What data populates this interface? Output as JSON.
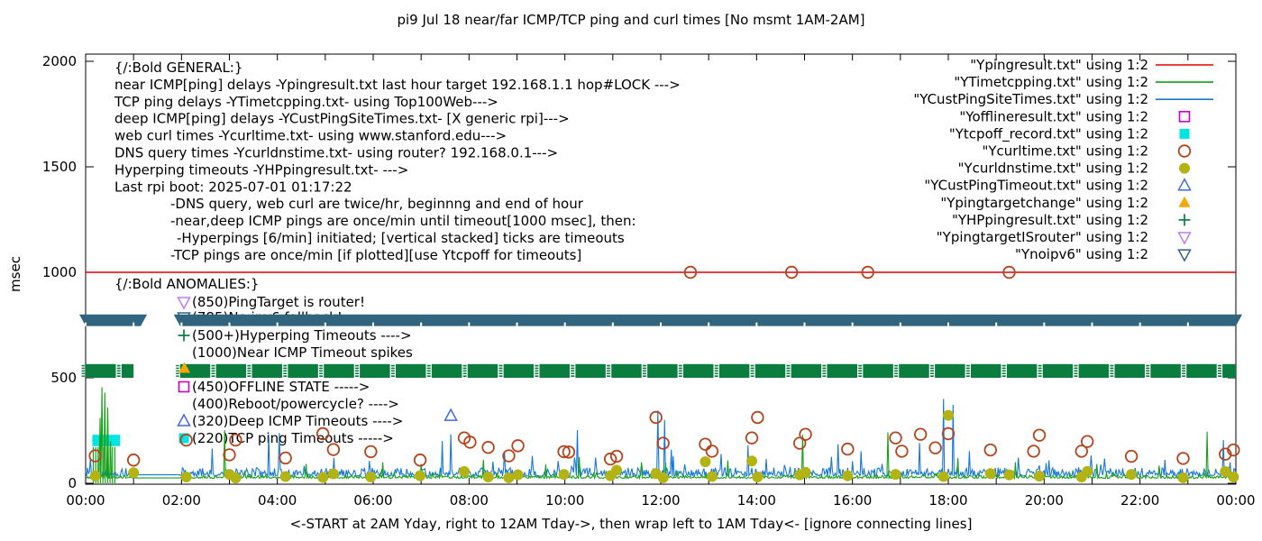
{
  "title": "pi9 Jul 18  near/far ICMP/TCP ping and curl times [No msmt 1AM-2AM]",
  "axes": {
    "ylabel": "msec",
    "xlabel": "<-START at 2AM Yday, right to 12AM Tday->, then wrap left to 1AM Tday<- [ignore connecting lines]",
    "y_ticks": [
      0,
      500,
      1000,
      1500,
      2000
    ],
    "x_ticks": [
      "00:00",
      "02:00",
      "04:00",
      "06:00",
      "08:00",
      "10:00",
      "12:00",
      "14:00",
      "16:00",
      "18:00",
      "20:00",
      "22:00",
      "00:00"
    ]
  },
  "legend": [
    {
      "label": "\"Ypingresult.txt\" using 1:2",
      "marker": "line",
      "color": "#e60000"
    },
    {
      "label": "\"YTimetcpping.txt\" using 1:2",
      "marker": "line",
      "color": "#16a016"
    },
    {
      "label": "\"YCustPingSiteTimes.txt\" using 1:2",
      "marker": "line",
      "color": "#1878d8"
    },
    {
      "label": "\"Yofflineresult.txt\" using 1:2",
      "marker": "square-open",
      "color": "#c800c8"
    },
    {
      "label": "\"Ytcpoff_record.txt\" using 1:2",
      "marker": "square-filled",
      "color": "#00e4e4"
    },
    {
      "label": "\"Ycurltime.txt\" using 1:2",
      "marker": "circle-open",
      "color": "#b5441c"
    },
    {
      "label": "\"Ycurldnstime.txt\" using 1:2",
      "marker": "circle-filled",
      "color": "#b3b414"
    },
    {
      "label": "\"YCustPingTimeout.txt\" using 1:2",
      "marker": "triangle-up-open",
      "color": "#4169e1"
    },
    {
      "label": "\"Ypingtargetchange\" using 1:2",
      "marker": "triangle-up-filled",
      "color": "#f7a707"
    },
    {
      "label": "\"YHPpingresult.txt\" using 1:2",
      "marker": "plus",
      "color": "#0b7d3e"
    },
    {
      "label": "\"YpingtargetISrouter\" using 1:2",
      "marker": "triangle-down-open",
      "color": "#bc7ef2"
    },
    {
      "label": "\"Ynoipv6\" using 1:2",
      "marker": "triangle-down-open",
      "color": "#31647e"
    }
  ],
  "annotations": {
    "general": [
      {
        "text": "{/:Bold GENERAL:}",
        "indent": 0
      },
      {
        "text": "near ICMP[ping] delays -Ypingresult.txt last hour target 192.168.1.1 hop#LOCK --->",
        "indent": 0
      },
      {
        "text": "TCP ping delays -YTimetcpping.txt- using Top100Web--->",
        "indent": 0
      },
      {
        "text": "deep ICMP[ping] delays -YCustPingSiteTimes.txt- [X generic rpi]--->",
        "indent": 0
      },
      {
        "text": "web curl times -Ycurltime.txt- using www.stanford.edu--->",
        "indent": 0
      },
      {
        "text": "DNS query times -Ycurldnstime.txt- using router? 192.168.0.1--->",
        "indent": 0
      },
      {
        "text": "Hyperping timeouts -YHPpingresult.txt- --->",
        "indent": 0
      },
      {
        "text": "Last rpi boot: 2025-07-01 01:17:22",
        "indent": 0
      },
      {
        "text": "-DNS query, web curl are twice/hr, beginnng and end of hour",
        "indent": 1
      },
      {
        "text": "-near,deep ICMP pings are once/min until timeout[1000 msec], then:",
        "indent": 1
      },
      {
        "text": "-Hyperpings [6/min] initiated; [vertical stacked] ticks are timeouts",
        "indent": 2
      },
      {
        "text": "-TCP pings are once/min [if plotted][use Ytcpoff for timeouts]",
        "indent": 1
      }
    ],
    "anomalies_header": "{/:Bold ANOMALIES:}",
    "anomalies": [
      {
        "text": "(850)PingTarget is router!",
        "icon": "triangle-down-open",
        "color": "#bc7ef2"
      },
      {
        "text": "(785)No ipv6 fallback!",
        "icon": "triangle-down-open",
        "color": "#31647e"
      },
      {
        "text": "(500+)Hyperping Timeouts ---->",
        "icon": "plus",
        "color": "#0b7d3e"
      },
      {
        "text": "(1000)Near ICMP Timeout spikes",
        "icon": null,
        "color": null
      },
      {
        "text": "(450)OFFLINE STATE ----->",
        "icon": "square-open",
        "color": "#c800c8"
      },
      {
        "text": "(400)Reboot/powercycle? ---->",
        "icon": null,
        "color": null
      },
      {
        "text": "(320)Deep ICMP Timeouts ---->",
        "icon": "triangle-up-open",
        "color": "#4169e1"
      },
      {
        "text": "(220)TCP ping Timeouts ----->",
        "icon": "square-filled",
        "color": "#00e4e4"
      }
    ]
  },
  "chart_data": {
    "type": "line",
    "x_range_hours": [
      0,
      24
    ],
    "y_range_msec": [
      0,
      2045
    ],
    "no_measurement_gap_hours": [
      1.0,
      1.97
    ],
    "series": [
      {
        "name": "Ypingresult.txt",
        "style": "line",
        "color": "#e60000",
        "constant": 1000
      },
      {
        "name": "YTimetcpping.txt",
        "style": "line",
        "color": "#16a016",
        "baseline": 24,
        "noise": 14,
        "gap_value": 25,
        "spikes": [
          [
            0.3,
            310
          ],
          [
            0.34,
            455
          ],
          [
            0.39,
            430
          ],
          [
            0.45,
            360
          ],
          [
            0.51,
            200
          ],
          [
            2.9,
            252
          ],
          [
            4.6,
            92
          ],
          [
            6.2,
            100
          ],
          [
            7.0,
            92
          ],
          [
            8.3,
            112
          ],
          [
            9.6,
            90
          ],
          [
            10.3,
            125
          ],
          [
            11.6,
            100
          ],
          [
            12.1,
            98
          ],
          [
            13.4,
            108
          ],
          [
            14.96,
            230
          ],
          [
            16.73,
            242
          ],
          [
            18.2,
            120
          ],
          [
            19.4,
            100
          ],
          [
            21.1,
            92
          ],
          [
            22.4,
            84
          ],
          [
            23.4,
            245
          ]
        ]
      },
      {
        "name": "YCustPingSiteTimes.txt",
        "style": "line",
        "color": "#1878d8",
        "baseline": 34,
        "noise": 40,
        "gap_value": 40,
        "spikes": [
          [
            0.1,
            120
          ],
          [
            2.63,
            165
          ],
          [
            3.82,
            230
          ],
          [
            4.04,
            238
          ],
          [
            5.17,
            120
          ],
          [
            7.43,
            200
          ],
          [
            7.62,
            232
          ],
          [
            8.74,
            150
          ],
          [
            9.31,
            130
          ],
          [
            10.25,
            252
          ],
          [
            10.63,
            122
          ],
          [
            11.94,
            345
          ],
          [
            12.07,
            300
          ],
          [
            12.22,
            160
          ],
          [
            13.82,
            180
          ],
          [
            15.7,
            185
          ],
          [
            16.17,
            152
          ],
          [
            17.4,
            192
          ],
          [
            17.9,
            400
          ],
          [
            18.09,
            372
          ],
          [
            18.43,
            152
          ],
          [
            19.47,
            122
          ],
          [
            20.97,
            132
          ],
          [
            23.73,
            205
          ]
        ]
      },
      {
        "name": "Yofflineresult.txt",
        "style": "square-open",
        "color": "#c800c8",
        "points": []
      },
      {
        "name": "Ytcpoff_record.txt",
        "style": "square-filled",
        "color": "#00e4e4",
        "points": [],
        "block": {
          "from_h": 0.14,
          "to_h": 0.72,
          "value_range": [
            176,
            230
          ]
        }
      },
      {
        "name": "Ycurltime.txt",
        "style": "circle-open",
        "color": "#b5441c",
        "points": [
          [
            0.2,
            130
          ],
          [
            1.0,
            110
          ],
          [
            2.1,
            205
          ],
          [
            3.0,
            135
          ],
          [
            3.13,
            205
          ],
          [
            4.17,
            120
          ],
          [
            4.95,
            235
          ],
          [
            5.17,
            160
          ],
          [
            5.95,
            150
          ],
          [
            6.98,
            110
          ],
          [
            7.9,
            215
          ],
          [
            8.02,
            195
          ],
          [
            8.4,
            170
          ],
          [
            8.83,
            130
          ],
          [
            9.02,
            178
          ],
          [
            9.98,
            150
          ],
          [
            10.08,
            148
          ],
          [
            10.95,
            115
          ],
          [
            11.08,
            128
          ],
          [
            11.9,
            312
          ],
          [
            12.05,
            190
          ],
          [
            12.62,
            1000
          ],
          [
            12.93,
            185
          ],
          [
            13.07,
            152
          ],
          [
            13.9,
            215
          ],
          [
            14.02,
            312
          ],
          [
            14.73,
            1000
          ],
          [
            14.9,
            190
          ],
          [
            15.02,
            232
          ],
          [
            15.9,
            162
          ],
          [
            16.32,
            1000
          ],
          [
            16.9,
            215
          ],
          [
            17.03,
            152
          ],
          [
            17.42,
            232
          ],
          [
            17.73,
            168
          ],
          [
            18.0,
            235
          ],
          [
            18.88,
            158
          ],
          [
            19.27,
            1000
          ],
          [
            19.78,
            152
          ],
          [
            19.9,
            228
          ],
          [
            20.78,
            152
          ],
          [
            20.9,
            198
          ],
          [
            21.82,
            128
          ],
          [
            22.9,
            118
          ],
          [
            23.78,
            138
          ],
          [
            23.95,
            158
          ]
        ]
      },
      {
        "name": "Ycurldnstime.txt",
        "style": "circle-filled",
        "color": "#b3b414",
        "points": [
          [
            0.2,
            35
          ],
          [
            1.0,
            50
          ],
          [
            2.1,
            30
          ],
          [
            3.0,
            42
          ],
          [
            3.13,
            25
          ],
          [
            4.17,
            32
          ],
          [
            4.95,
            28
          ],
          [
            5.17,
            45
          ],
          [
            5.95,
            30
          ],
          [
            6.98,
            36
          ],
          [
            7.9,
            56
          ],
          [
            8.4,
            30
          ],
          [
            8.83,
            26
          ],
          [
            9.02,
            40
          ],
          [
            9.98,
            42
          ],
          [
            10.95,
            36
          ],
          [
            11.08,
            62
          ],
          [
            11.9,
            46
          ],
          [
            12.05,
            26
          ],
          [
            12.93,
            102
          ],
          [
            13.07,
            32
          ],
          [
            13.9,
            106
          ],
          [
            14.02,
            30
          ],
          [
            14.9,
            40
          ],
          [
            15.02,
            52
          ],
          [
            15.9,
            36
          ],
          [
            16.9,
            42
          ],
          [
            17.9,
            32
          ],
          [
            18.0,
            322
          ],
          [
            18.88,
            46
          ],
          [
            19.27,
            40
          ],
          [
            19.9,
            34
          ],
          [
            20.78,
            30
          ],
          [
            20.9,
            56
          ],
          [
            21.82,
            42
          ],
          [
            22.9,
            26
          ],
          [
            23.78,
            56
          ],
          [
            23.95,
            30
          ]
        ]
      },
      {
        "name": "YCustPingTimeout.txt",
        "style": "triangle-up-open",
        "color": "#4169e1",
        "points": [
          [
            7.62,
            320
          ]
        ]
      },
      {
        "name": "Ypingtargetchange",
        "style": "triangle-up-filled",
        "color": "#f7a707",
        "points": [
          [
            2.06,
            545
          ]
        ]
      },
      {
        "name": "YHPpingresult.txt",
        "style": "plus",
        "color": "#0b7d3e",
        "points": [],
        "band": {
          "segments_h": [
            [
              0,
              1.0
            ],
            [
              1.97,
              24
            ]
          ],
          "value_range": [
            500,
            565
          ],
          "textured": true
        }
      },
      {
        "name": "YpingtargetISrouter",
        "style": "triangle-down-open",
        "color": "#bc7ef2",
        "points": []
      },
      {
        "name": "Ynoipv6",
        "style": "triangle-down-open",
        "color": "#31647e",
        "points": [],
        "band": {
          "segments_h": [
            [
              0,
              1.15
            ],
            [
              1.97,
              24
            ]
          ],
          "value_range": [
            745,
            800
          ]
        }
      }
    ],
    "green_comb": {
      "from_h": 0.16,
      "to_h": 0.66,
      "step_h": 0.05,
      "value": 172,
      "color": "#16a016"
    }
  }
}
